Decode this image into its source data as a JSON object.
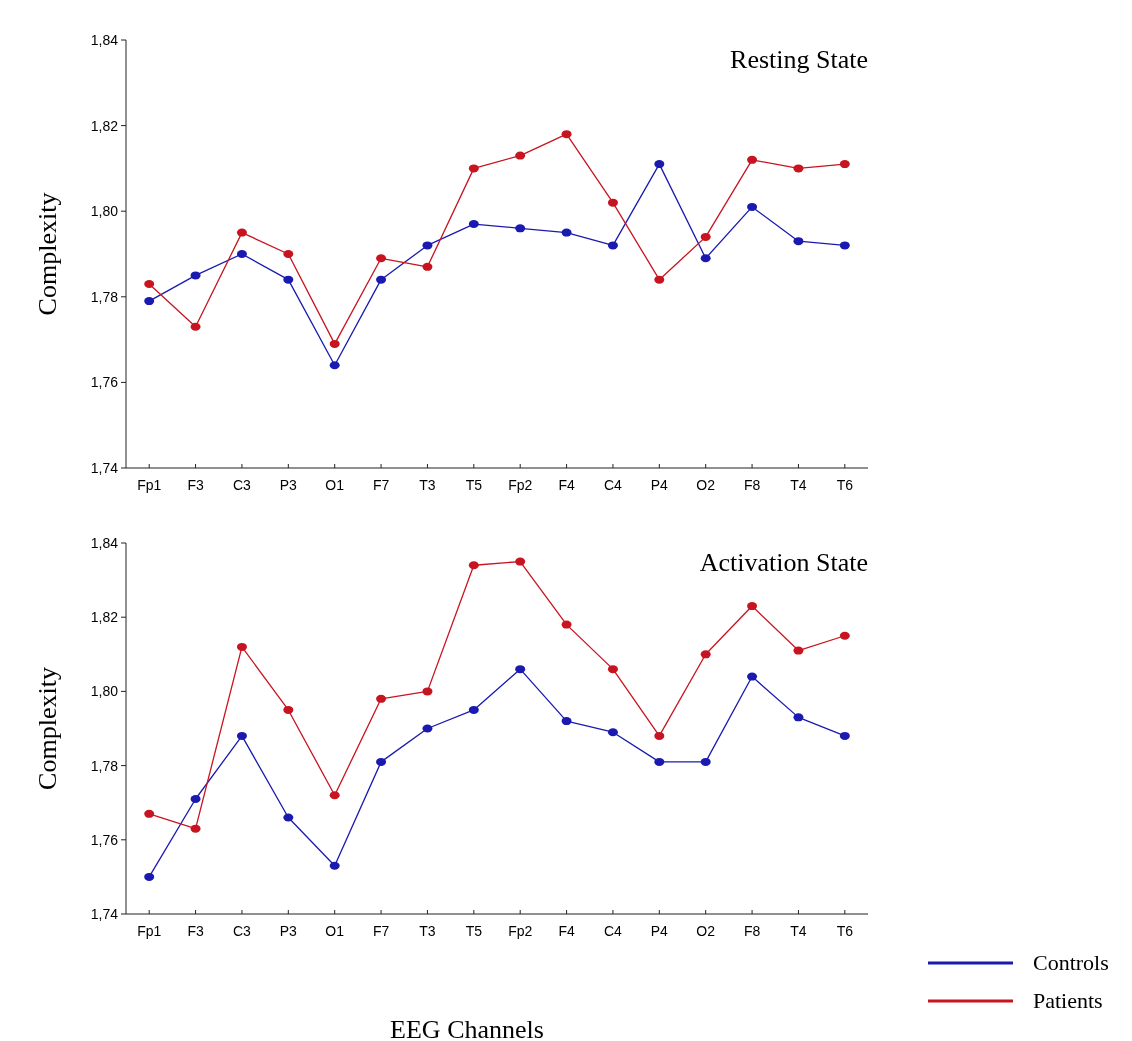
{
  "chart_data": [
    {
      "type": "line",
      "title": "Resting State",
      "ylabel": "Complexity",
      "categories": [
        "Fp1",
        "F3",
        "C3",
        "P3",
        "O1",
        "F7",
        "T3",
        "T5",
        "Fp2",
        "F4",
        "C4",
        "P4",
        "O2",
        "F8",
        "T4",
        "T6"
      ],
      "series": [
        {
          "color": "#1a1ab0",
          "values": [
            1.779,
            1.785,
            1.79,
            1.784,
            1.764,
            1.784,
            1.792,
            1.797,
            1.796,
            1.795,
            1.792,
            1.811,
            1.789,
            1.801,
            1.793,
            1.792
          ]
        },
        {
          "color": "#c81420",
          "values": [
            1.783,
            1.773,
            1.795,
            1.79,
            1.769,
            1.789,
            1.787,
            1.81,
            1.813,
            1.818,
            1.802,
            1.784,
            1.794,
            1.812,
            1.81,
            1.811
          ]
        }
      ],
      "ylim": [
        1.74,
        1.84
      ],
      "yticks": [
        {
          "value": 1.74,
          "label": "1,74"
        },
        {
          "value": 1.76,
          "label": "1,76"
        },
        {
          "value": 1.78,
          "label": "1,78"
        },
        {
          "value": 1.8,
          "label": "1,80"
        },
        {
          "value": 1.82,
          "label": "1,82"
        },
        {
          "value": 1.84,
          "label": "1,84"
        }
      ],
      "grid": false,
      "marker": "circle",
      "line_style": "solid",
      "legend": false
    },
    {
      "type": "line",
      "title": "Activation State",
      "ylabel": "Complexity",
      "xlabel": "EEG Channels",
      "categories": [
        "Fp1",
        "F3",
        "C3",
        "P3",
        "O1",
        "F7",
        "T3",
        "T5",
        "Fp2",
        "F4",
        "C4",
        "P4",
        "O2",
        "F8",
        "T4",
        "T6"
      ],
      "series": [
        {
          "name": "Controls",
          "color": "#1a1ab0",
          "values": [
            1.75,
            1.771,
            1.788,
            1.766,
            1.753,
            1.781,
            1.79,
            1.795,
            1.806,
            1.792,
            1.789,
            1.781,
            1.781,
            1.804,
            1.793,
            1.788
          ]
        },
        {
          "name": "Patients",
          "color": "#c81420",
          "values": [
            1.767,
            1.763,
            1.812,
            1.795,
            1.772,
            1.798,
            1.8,
            1.834,
            1.835,
            1.818,
            1.806,
            1.788,
            1.81,
            1.823,
            1.811,
            1.815
          ]
        }
      ],
      "ylim": [
        1.74,
        1.84
      ],
      "yticks": [
        {
          "value": 1.74,
          "label": "1,74"
        },
        {
          "value": 1.76,
          "label": "1,76"
        },
        {
          "value": 1.78,
          "label": "1,78"
        },
        {
          "value": 1.8,
          "label": "1,80"
        },
        {
          "value": 1.82,
          "label": "1,82"
        },
        {
          "value": 1.84,
          "label": "1,84"
        }
      ],
      "grid": false,
      "marker": "circle",
      "line_style": "solid",
      "legend": "bottom right"
    }
  ]
}
